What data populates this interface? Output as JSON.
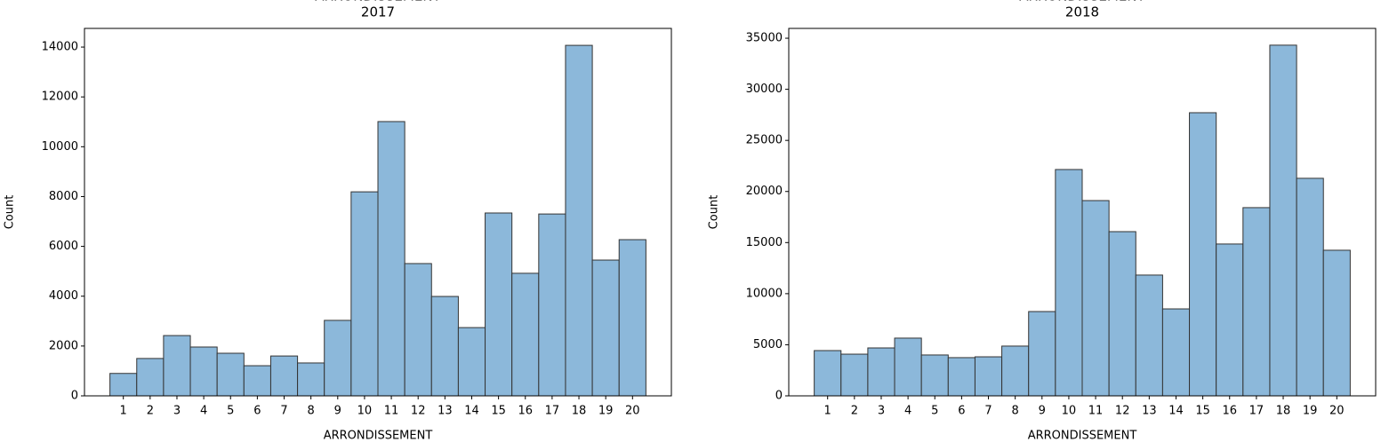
{
  "chart_data": [
    {
      "type": "histogram",
      "title": "ARRONDISSEMENT",
      "subtitle": "2017",
      "x_label": "ARRONDISSEMENT",
      "y_label": "Count",
      "bins": [
        0.5,
        1.5,
        2.5,
        3.5,
        4.5,
        5.5,
        6.5,
        7.5,
        8.5,
        9.5,
        10.5,
        11.5,
        12.5,
        13.5,
        14.5,
        15.5,
        16.5,
        17.5,
        18.5,
        19.5,
        20.5
      ],
      "values": [
        900,
        1500,
        2420,
        1960,
        1710,
        1210,
        1600,
        1320,
        3030,
        8190,
        11010,
        5310,
        3990,
        2740,
        7340,
        4920,
        7300,
        14070,
        5450,
        6270
      ],
      "color": "#8cb8da",
      "edgecolor": "#333333",
      "xlim": [
        -0.45,
        21.45
      ],
      "xticks": [
        1,
        2,
        3,
        4,
        5,
        6,
        7,
        8,
        9,
        10,
        11,
        12,
        13,
        14,
        15,
        16,
        17,
        18,
        19,
        20
      ],
      "ylim": [
        0,
        14750
      ],
      "yticks": [
        0,
        2000,
        4000,
        6000,
        8000,
        10000,
        12000,
        14000
      ]
    },
    {
      "type": "histogram",
      "title": "ARRONDISSEMENT",
      "subtitle": "2018",
      "x_label": "ARRONDISSEMENT",
      "y_label": "Count",
      "bins": [
        0.5,
        1.5,
        2.5,
        3.5,
        4.5,
        5.5,
        6.5,
        7.5,
        8.5,
        9.5,
        10.5,
        11.5,
        12.5,
        13.5,
        14.5,
        15.5,
        16.5,
        17.5,
        18.5,
        19.5,
        20.5
      ],
      "values": [
        4430,
        4080,
        4690,
        5650,
        4000,
        3740,
        3820,
        4870,
        8250,
        22150,
        19110,
        16070,
        11820,
        8510,
        27710,
        14860,
        18420,
        34320,
        21290,
        14250
      ],
      "color": "#8cb8da",
      "edgecolor": "#333333",
      "xlim": [
        -0.45,
        21.45
      ],
      "xticks": [
        1,
        2,
        3,
        4,
        5,
        6,
        7,
        8,
        9,
        10,
        11,
        12,
        13,
        14,
        15,
        16,
        17,
        18,
        19,
        20
      ],
      "ylim": [
        0,
        35960
      ],
      "yticks": [
        0,
        5000,
        10000,
        15000,
        20000,
        25000,
        30000,
        35000
      ]
    }
  ]
}
